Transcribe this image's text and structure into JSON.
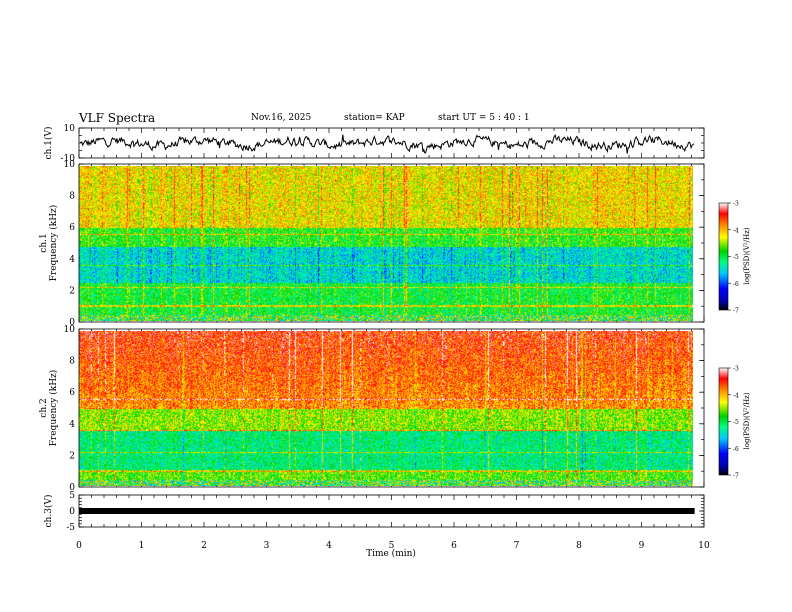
{
  "header": {
    "title": "VLF Spectra",
    "date": "Nov.16, 2025",
    "station": "station= KAP",
    "start": "start  UT  =   5  : 40 : 1"
  },
  "chart_data": [
    {
      "type": "line",
      "name": "ch1-waveform",
      "ylabel": "ch.1(V)",
      "ylim": [
        -10,
        10
      ],
      "ytick_labels": [
        "10",
        "-10"
      ]
    },
    {
      "type": "heatmap",
      "name": "ch1-spectrogram",
      "ylabel_top": "ch.1",
      "ylabel": "Frequency  (kHz)",
      "ylim": [
        0,
        10
      ],
      "ytick_labels": [
        "0",
        "2",
        "4",
        "6",
        "8",
        "10"
      ],
      "colorbar": {
        "label": "log(PSD)(V²/Hz)",
        "range": [
          -7,
          -3
        ],
        "ticks": [
          "-3",
          "-4",
          "-5",
          "-6",
          "-7"
        ]
      }
    },
    {
      "type": "heatmap",
      "name": "ch2-spectrogram",
      "ylabel_top": "ch.2",
      "ylabel": "Frequency  (kHz)",
      "ylim": [
        0,
        10
      ],
      "ytick_labels": [
        "0",
        "2",
        "4",
        "6",
        "8",
        "10"
      ],
      "colorbar": {
        "label": "log(PSD)(V²/Hz)",
        "range": [
          -7,
          -3
        ],
        "ticks": [
          "-3",
          "-4",
          "-5",
          "-6",
          "-7"
        ]
      }
    },
    {
      "type": "line",
      "name": "ch3-signal",
      "ylabel": "ch.3(V)",
      "ylim": [
        -5,
        5
      ],
      "ytick_labels": [
        "5",
        "0",
        "-5"
      ],
      "level": 0
    }
  ],
  "xaxis": {
    "label": "Time  (min)",
    "xlim": [
      0,
      10
    ],
    "tick_labels": [
      "0",
      "1",
      "2",
      "3",
      "4",
      "5",
      "6",
      "7",
      "8",
      "9",
      "10"
    ],
    "data_end": 9.85
  }
}
